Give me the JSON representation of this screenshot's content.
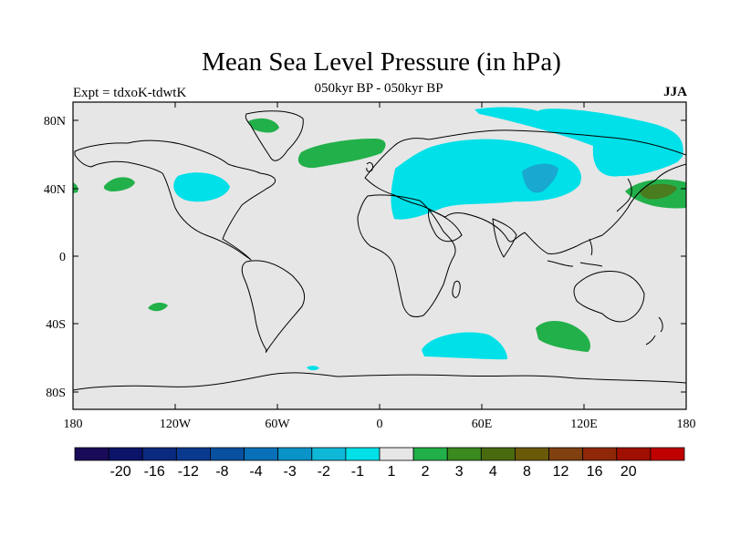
{
  "title": "Mean Sea Level Pressure (in hPa)",
  "subtitle": "050kyr BP - 050kyr BP",
  "experiment": "Expt = tdxoK-tdwtK",
  "season": "JJA",
  "colors": {
    "background": "#e6e6e6",
    "neg_fill": "#00e0e8",
    "neg_strong": "#18a8d0",
    "pos_fill": "#22b04a",
    "pos_strong": "#4a7c20"
  },
  "chart_data": {
    "type": "map",
    "projection": "cylindrical-equidistant",
    "lon_range": [
      -180,
      180
    ],
    "lat_range": [
      -90,
      90
    ],
    "x_ticks": [
      "180",
      "120W",
      "60W",
      "0",
      "60E",
      "120E",
      "180"
    ],
    "y_ticks": [
      "80N",
      "40N",
      "0",
      "40S",
      "80S"
    ],
    "colorbar": {
      "labels": [
        "-20",
        "-16",
        "-12",
        "-8",
        "-4",
        "-3",
        "-2",
        "-1",
        "1",
        "2",
        "3",
        "4",
        "8",
        "12",
        "16",
        "20"
      ],
      "colors": [
        "#1a0a5a",
        "#0a1468",
        "#0a2a80",
        "#0a3a90",
        "#0850a0",
        "#0870b8",
        "#0894c8",
        "#10b8d8",
        "#00e0e8",
        "#e6e6e6",
        "#22b04a",
        "#3a8a20",
        "#4a6a10",
        "#6a5a08",
        "#804010",
        "#902808",
        "#a01000",
        "#c00000"
      ]
    }
  }
}
